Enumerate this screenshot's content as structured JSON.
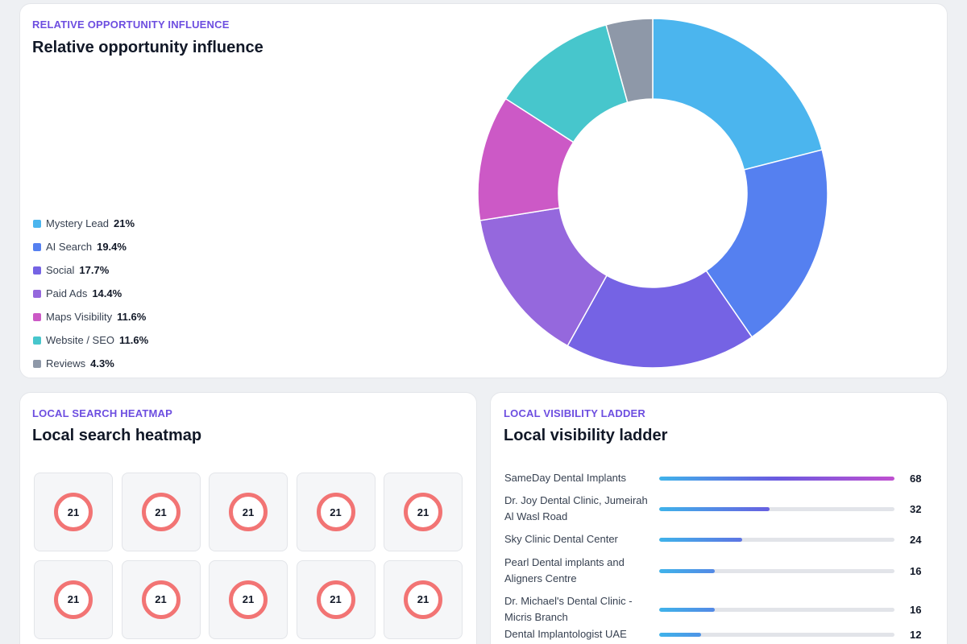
{
  "influence": {
    "eyebrow": "RELATIVE OPPORTUNITY INFLUENCE",
    "title": "Relative opportunity influence",
    "chart_data": {
      "type": "pie",
      "categories": [
        "Mystery Lead",
        "AI Search",
        "Social",
        "Paid Ads",
        "Maps Visibility",
        "Website / SEO",
        "Reviews"
      ],
      "values": [
        21,
        19.4,
        17.7,
        14.4,
        11.6,
        11.6,
        4.3
      ],
      "value_labels": [
        "21%",
        "19.4%",
        "17.7%",
        "14.4%",
        "11.6%",
        "11.6%",
        "4.3%"
      ],
      "colors": [
        "#4bb5ee",
        "#5580f0",
        "#7563e4",
        "#9568dd",
        "#cc59c6",
        "#47c6cc",
        "#8e98a8"
      ],
      "legend_position": "left"
    }
  },
  "heatmap": {
    "eyebrow": "LOCAL SEARCH HEATMAP",
    "title": "Local search heatmap",
    "badge_color": "#f27474",
    "cells": [
      "21",
      "21",
      "21",
      "21",
      "21",
      "21",
      "21",
      "21",
      "21",
      "21"
    ]
  },
  "ladder": {
    "eyebrow": "LOCAL VISIBILITY LADDER",
    "title": "Local visibility ladder",
    "max": 68,
    "rows": [
      {
        "name": "SameDay Dental Implants",
        "value": 68,
        "label": "68"
      },
      {
        "name": "Dr. Joy Dental Clinic, Jumeirah Al Wasl Road",
        "value": 32,
        "label": "32"
      },
      {
        "name": "Sky Clinic Dental Center",
        "value": 24,
        "label": "24"
      },
      {
        "name": "Pearl Dental implants and Aligners Centre",
        "value": 16,
        "label": "16"
      },
      {
        "name": "Dr. Michael's Dental Clinic - Micris Branch",
        "value": 16,
        "label": "16"
      },
      {
        "name": "Dental Implantologist UAE",
        "value": 12,
        "label": "12"
      }
    ]
  }
}
